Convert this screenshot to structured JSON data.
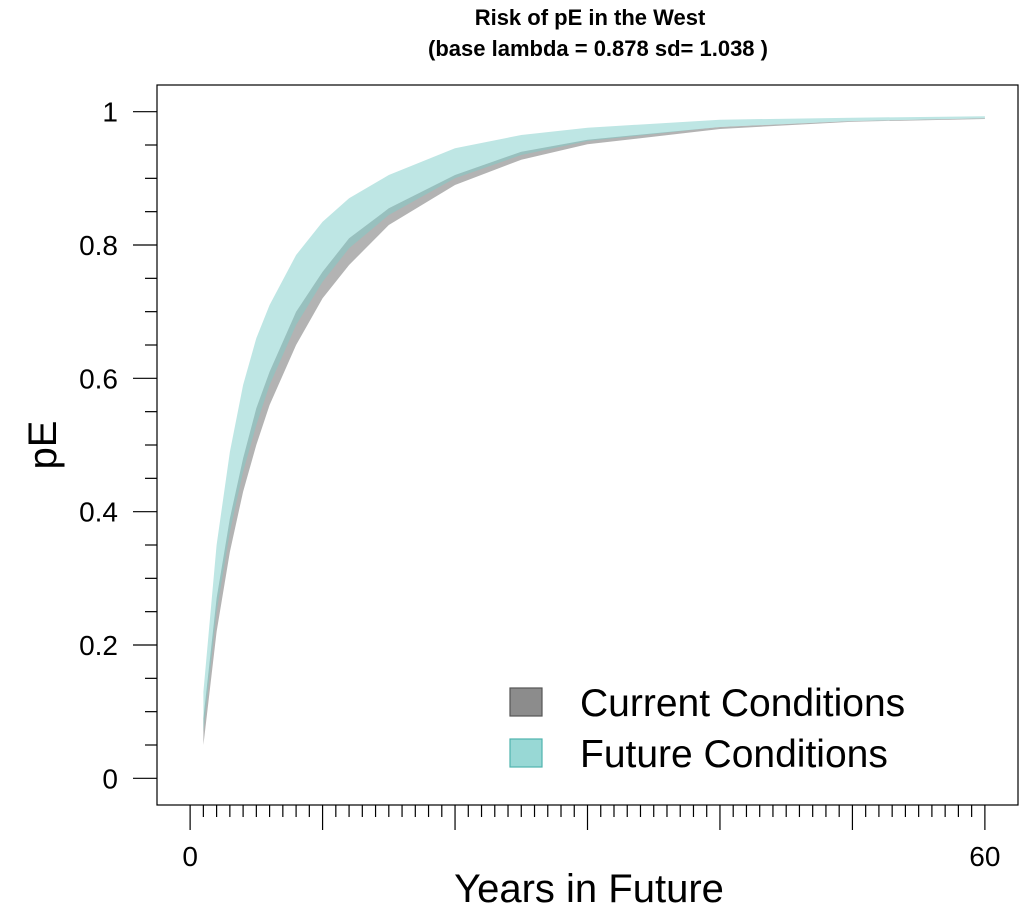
{
  "chart_data": {
    "type": "area",
    "title": "Risk of pE in the West",
    "subtitle": "(base lambda =  0.878 sd= 1.038 )",
    "xlabel": "Years in Future",
    "ylabel": "pE",
    "xlim": [
      -2.5,
      62.5
    ],
    "ylim": [
      -0.04,
      1.04
    ],
    "x_ticks": [
      0,
      60
    ],
    "x_minor_step": 1,
    "x_major_step": 10,
    "y_ticks": [
      0,
      0.2,
      0.4,
      0.6,
      0.8,
      1
    ],
    "y_tick_labels": [
      "0",
      "0.2",
      "0.4",
      "0.6",
      "0.8",
      "1"
    ],
    "y_minor_step": 0.05,
    "grid": false,
    "legend": "bottom-right",
    "x": [
      1,
      2,
      3,
      4,
      5,
      6,
      8,
      10,
      12,
      15,
      20,
      25,
      30,
      40,
      50,
      60
    ],
    "series": [
      {
        "name": "Current Conditions",
        "color": "#808080",
        "opacity": 0.6,
        "lower": [
          0.05,
          0.22,
          0.34,
          0.43,
          0.5,
          0.56,
          0.65,
          0.72,
          0.77,
          0.83,
          0.89,
          0.928,
          0.951,
          0.974,
          0.985,
          0.989
        ],
        "upper": [
          0.09,
          0.27,
          0.39,
          0.48,
          0.555,
          0.61,
          0.7,
          0.76,
          0.81,
          0.855,
          0.905,
          0.94,
          0.958,
          0.977,
          0.986,
          0.99
        ]
      },
      {
        "name": "Future Conditions",
        "color": "#7ececa",
        "opacity": 0.5,
        "lower": [
          0.07,
          0.25,
          0.37,
          0.46,
          0.53,
          0.59,
          0.68,
          0.745,
          0.795,
          0.845,
          0.9,
          0.935,
          0.956,
          0.977,
          0.986,
          0.99
        ],
        "upper": [
          0.13,
          0.35,
          0.49,
          0.59,
          0.66,
          0.71,
          0.785,
          0.835,
          0.87,
          0.905,
          0.945,
          0.965,
          0.976,
          0.988,
          0.991,
          0.993
        ]
      }
    ]
  }
}
